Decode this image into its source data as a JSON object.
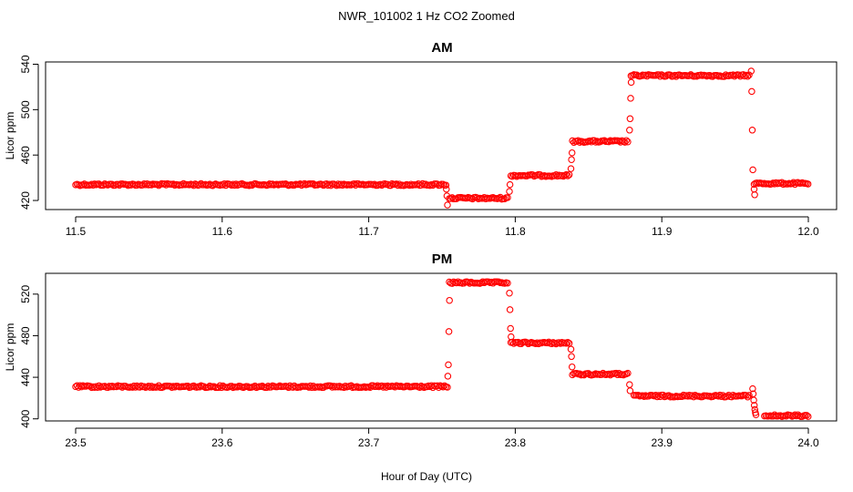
{
  "title": "NWR_101002  1 Hz CO2 Zoomed",
  "xlabel": "Hour of Day (UTC)",
  "colors": {
    "points": "#ff0000",
    "axes": "#000000",
    "background": "#ffffff"
  },
  "chart_data": [
    {
      "type": "scatter",
      "title": "AM",
      "ylabel": "Licor ppm",
      "xlim": [
        11.5,
        12.0
      ],
      "ylim": [
        412,
        542
      ],
      "xticks": [
        "11.5",
        "11.6",
        "11.7",
        "11.8",
        "11.9",
        "12.0"
      ],
      "yticks": [
        "420",
        "460",
        "500",
        "540"
      ],
      "segments": [
        {
          "x0": 11.5,
          "x1": 11.753,
          "y": 434
        },
        {
          "x0": 11.755,
          "x1": 11.795,
          "y": 422
        },
        {
          "x0": 11.797,
          "x1": 11.837,
          "y": 442
        },
        {
          "x0": 11.839,
          "x1": 11.877,
          "y": 472
        },
        {
          "x0": 11.879,
          "x1": 11.96,
          "y": 530
        },
        {
          "x0": 11.963,
          "x1": 12.0,
          "y": 435
        }
      ],
      "transitions": [
        {
          "x": 11.753,
          "values": [
            430,
            424,
            416
          ]
        },
        {
          "x": 11.796,
          "values": [
            428,
            434
          ]
        },
        {
          "x": 11.838,
          "values": [
            448,
            456,
            462
          ]
        },
        {
          "x": 11.878,
          "values": [
            482,
            492,
            510,
            524
          ]
        },
        {
          "x": 11.961,
          "values": [
            534,
            516,
            482,
            447
          ]
        },
        {
          "x": 11.963,
          "values": [
            430,
            425
          ]
        }
      ]
    },
    {
      "type": "scatter",
      "title": "PM",
      "ylabel": "Licor ppm",
      "xlim": [
        23.5,
        24.0
      ],
      "ylim": [
        398,
        540
      ],
      "xticks": [
        "23.5",
        "23.6",
        "23.7",
        "23.8",
        "23.9",
        "24.0"
      ],
      "yticks": [
        "400",
        "440",
        "480",
        "520"
      ],
      "segments": [
        {
          "x0": 23.5,
          "x1": 23.754,
          "y": 431
        },
        {
          "x0": 23.755,
          "x1": 23.795,
          "y": 531
        },
        {
          "x0": 23.797,
          "x1": 23.837,
          "y": 473
        },
        {
          "x0": 23.839,
          "x1": 23.877,
          "y": 443
        },
        {
          "x0": 23.881,
          "x1": 23.96,
          "y": 422
        },
        {
          "x0": 23.97,
          "x1": 24.0,
          "y": 403
        }
      ],
      "transitions": [
        {
          "x": 23.754,
          "values": [
            441,
            452,
            484,
            514
          ]
        },
        {
          "x": 23.796,
          "values": [
            521,
            505,
            487,
            479
          ]
        },
        {
          "x": 23.838,
          "values": [
            467,
            460,
            450
          ]
        },
        {
          "x": 23.878,
          "values": [
            433,
            427
          ]
        },
        {
          "x": 23.962,
          "values": [
            429,
            424,
            418,
            413,
            409,
            406,
            404
          ]
        }
      ]
    }
  ]
}
